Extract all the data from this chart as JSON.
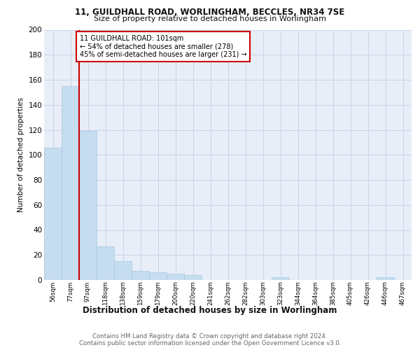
{
  "title1": "11, GUILDHALL ROAD, WORLINGHAM, BECCLES, NR34 7SE",
  "title2": "Size of property relative to detached houses in Worlingham",
  "xlabel": "Distribution of detached houses by size in Worlingham",
  "ylabel": "Number of detached properties",
  "categories": [
    "56sqm",
    "77sqm",
    "97sqm",
    "118sqm",
    "138sqm",
    "159sqm",
    "179sqm",
    "200sqm",
    "220sqm",
    "241sqm",
    "262sqm",
    "282sqm",
    "303sqm",
    "323sqm",
    "344sqm",
    "364sqm",
    "385sqm",
    "405sqm",
    "426sqm",
    "446sqm",
    "467sqm"
  ],
  "values": [
    106,
    155,
    119,
    27,
    15,
    7,
    6,
    5,
    4,
    0,
    0,
    0,
    0,
    2,
    0,
    0,
    0,
    0,
    0,
    2,
    0
  ],
  "bar_color": "#c6dcef",
  "bar_edge_color": "#a8c8e0",
  "annotation_title": "11 GUILDHALL ROAD: 101sqm",
  "annotation_line1": "← 54% of detached houses are smaller (278)",
  "annotation_line2": "45% of semi-detached houses are larger (231) →",
  "annotation_box_color": "#ffffff",
  "annotation_box_edge": "#cc0000",
  "vline_color": "#cc0000",
  "grid_color": "#c8d4e8",
  "background_color": "#e8eef8",
  "ylim": [
    0,
    200
  ],
  "yticks": [
    0,
    20,
    40,
    60,
    80,
    100,
    120,
    140,
    160,
    180,
    200
  ],
  "footer1": "Contains HM Land Registry data © Crown copyright and database right 2024.",
  "footer2": "Contains public sector information licensed under the Open Government Licence v3.0."
}
